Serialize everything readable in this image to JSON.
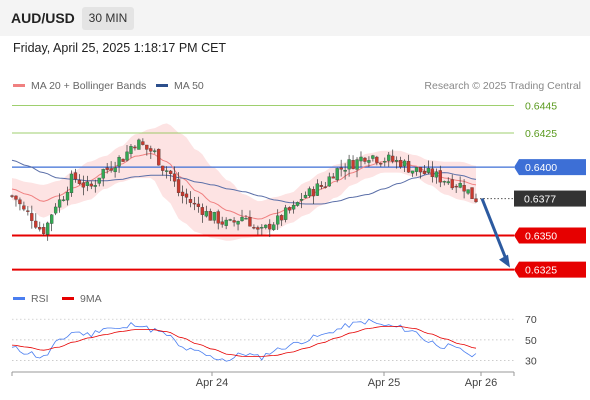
{
  "header": {
    "pair": "AUD/USD",
    "timeframe": "30 MIN"
  },
  "datetime": "Friday, April 25, 2025 1:18:17 PM CET",
  "legend": {
    "ma20_label": "MA 20 + Bollinger Bands",
    "ma50_label": "MA 50",
    "rsi_label": "RSI",
    "rsi_ma_label": "9MA",
    "credit": "Research © 2025 Trading Central"
  },
  "colors": {
    "ma20": "#f08080",
    "bollinger_fill": "#fde3e3",
    "ma50": "#5b6fa8",
    "support": "#e60000",
    "resistance": "#7fbf3f",
    "pivot": "#3d6fd6",
    "candle_up": "#33a853",
    "candle_down": "#c93a2f",
    "rsi": "#4a7ef0",
    "rsi_ma": "#e60000",
    "current": "#333333",
    "arrow": "#2c5aa0"
  },
  "chart_data": {
    "type": "candlestick",
    "price_axis": {
      "min": 0.6313,
      "max": 0.6455
    },
    "x_tick_labels": [
      "Apr 24",
      "Apr 25",
      "Apr 26"
    ],
    "levels": [
      {
        "label": "0.6445",
        "value": 0.6445,
        "kind": "resistance"
      },
      {
        "label": "0.6425",
        "value": 0.6425,
        "kind": "resistance"
      },
      {
        "label": "0.6400",
        "value": 0.64,
        "kind": "pivot"
      },
      {
        "label": "0.6377",
        "value": 0.6377,
        "kind": "current"
      },
      {
        "label": "0.6350",
        "value": 0.635,
        "kind": "support"
      },
      {
        "label": "0.6325",
        "value": 0.6325,
        "kind": "support"
      }
    ],
    "forecast": {
      "from": 0.6377,
      "to": 0.6325
    },
    "close_anchors": [
      0.6379,
      0.6366,
      0.6354,
      0.6375,
      0.6392,
      0.6385,
      0.6398,
      0.6406,
      0.6418,
      0.6412,
      0.6398,
      0.6379,
      0.6371,
      0.6363,
      0.6358,
      0.6364,
      0.6352,
      0.636,
      0.6368,
      0.638,
      0.6386,
      0.6398,
      0.6403,
      0.6409,
      0.6406,
      0.6404,
      0.6398,
      0.6395,
      0.6391,
      0.6387,
      0.6377
    ],
    "ma20_anchors": [
      0.6384,
      0.638,
      0.6375,
      0.6379,
      0.6385,
      0.639,
      0.6396,
      0.6402,
      0.6408,
      0.641,
      0.6404,
      0.6392,
      0.6382,
      0.6374,
      0.6368,
      0.6364,
      0.6362,
      0.6366,
      0.637,
      0.6377,
      0.6384,
      0.639,
      0.6396,
      0.6401,
      0.6404,
      0.6404,
      0.6401,
      0.6396,
      0.6392,
      0.639,
      0.6387
    ],
    "bollinger_half_width": [
      0.0008,
      0.0009,
      0.0012,
      0.0011,
      0.0012,
      0.0014,
      0.0012,
      0.0013,
      0.0016,
      0.0018,
      0.0028,
      0.0032,
      0.003,
      0.0026,
      0.0022,
      0.0016,
      0.0013,
      0.0012,
      0.0011,
      0.0012,
      0.0012,
      0.0012,
      0.0009,
      0.0009,
      0.0008,
      0.0008,
      0.0008,
      0.0009,
      0.0012,
      0.0014,
      0.0014
    ],
    "ma50_anchors": [
      0.6405,
      0.6401,
      0.6396,
      0.6392,
      0.6391,
      0.639,
      0.639,
      0.6391,
      0.6393,
      0.6394,
      0.6394,
      0.6392,
      0.6389,
      0.6387,
      0.6384,
      0.6382,
      0.6379,
      0.6376,
      0.6374,
      0.6373,
      0.6373,
      0.6375,
      0.6378,
      0.638,
      0.6384,
      0.6388,
      0.6392,
      0.6395,
      0.6396,
      0.6394,
      0.6391
    ],
    "rsi": {
      "axis": {
        "min": 20,
        "max": 75
      },
      "ticks": [
        70,
        50,
        30
      ],
      "rsi_anchors": [
        42,
        38,
        33,
        48,
        58,
        55,
        62,
        60,
        66,
        60,
        55,
        42,
        38,
        33,
        31,
        37,
        33,
        40,
        45,
        50,
        54,
        60,
        65,
        68,
        64,
        62,
        58,
        48,
        44,
        40,
        34
      ],
      "ma_anchors": [
        45,
        43,
        40,
        43,
        48,
        52,
        55,
        58,
        60,
        60,
        58,
        52,
        46,
        41,
        36,
        34,
        34,
        35,
        38,
        42,
        47,
        52,
        57,
        61,
        63,
        63,
        61,
        56,
        51,
        46,
        42
      ]
    }
  }
}
